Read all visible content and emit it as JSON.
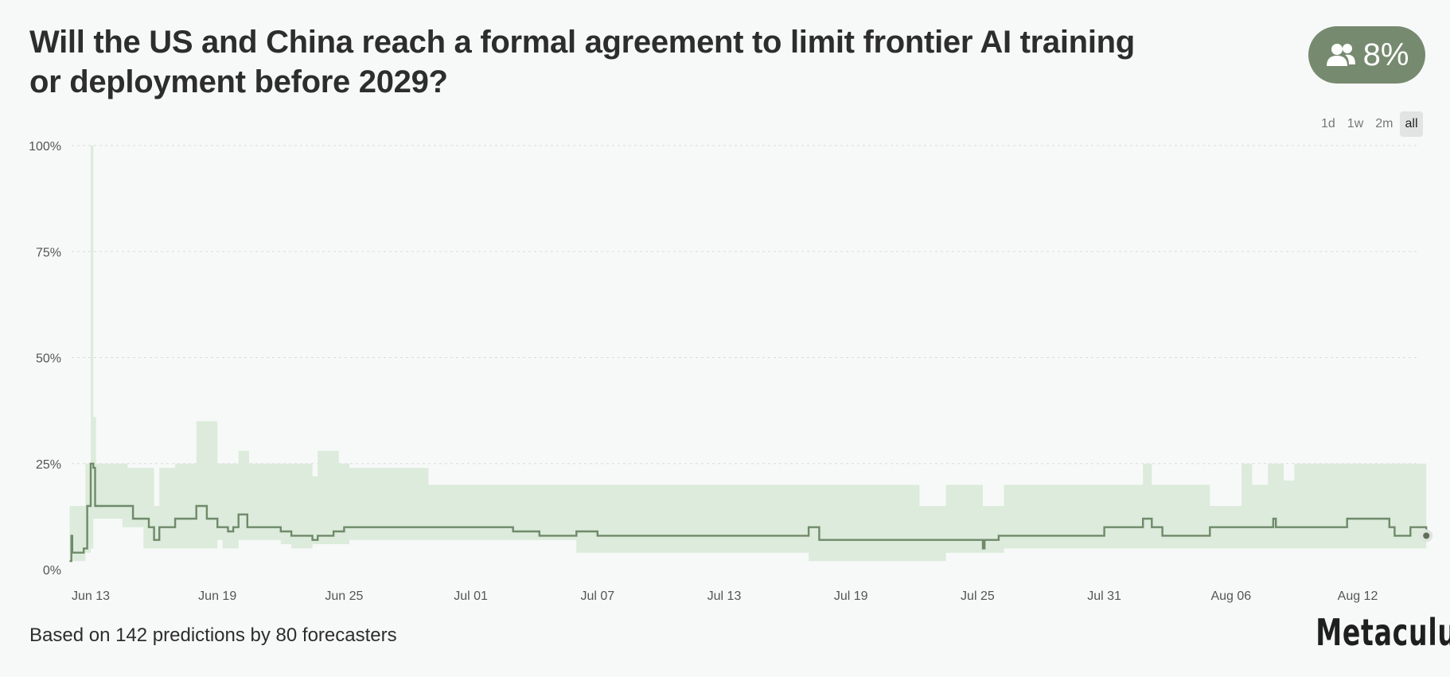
{
  "question": {
    "title": "Will the US and China reach a formal agreement to limit frontier AI training or deployment before 2029?"
  },
  "badge": {
    "icon": "people-icon",
    "value": "8%",
    "color": "#768a6f"
  },
  "range_buttons": [
    {
      "label": "1d",
      "active": false
    },
    {
      "label": "1w",
      "active": false
    },
    {
      "label": "2m",
      "active": false
    },
    {
      "label": "all",
      "active": true
    }
  ],
  "footer": {
    "text": "Based on 142 predictions by 80 forecasters"
  },
  "brand": {
    "name": "Metaculus"
  },
  "chart_data": {
    "type": "line",
    "title": "",
    "xlabel": "",
    "ylabel": "",
    "x_start": "2025-06-13",
    "x_end": "2025-08-15",
    "x_ticks": [
      "Jun 13",
      "Jun 19",
      "Jun 25",
      "Jul 01",
      "Jul 07",
      "Jul 13",
      "Jul 19",
      "Jul 25",
      "Jul 31",
      "Aug 06",
      "Aug 12"
    ],
    "x_tick_dates": [
      "2025-06-13",
      "2025-06-19",
      "2025-06-25",
      "2025-07-01",
      "2025-07-07",
      "2025-07-13",
      "2025-07-19",
      "2025-07-25",
      "2025-07-31",
      "2025-08-06",
      "2025-08-12"
    ],
    "y_ticks": [
      "0%",
      "25%",
      "50%",
      "75%",
      "100%"
    ],
    "y_tick_values": [
      0,
      25,
      50,
      75,
      100
    ],
    "ylim": [
      0,
      100
    ],
    "grid": true,
    "line_color": "#6f8a6a",
    "band_color": "#dcebdb",
    "series": [
      {
        "name": "",
        "points": [
          [
            "2025-06-12 00:00",
            2
          ],
          [
            "2025-06-12 02:00",
            8
          ],
          [
            "2025-06-12 03:00",
            4
          ],
          [
            "2025-06-12 16:00",
            5
          ],
          [
            "2025-06-12 20:00",
            15
          ],
          [
            "2025-06-13 00:00",
            25
          ],
          [
            "2025-06-13 03:00",
            24
          ],
          [
            "2025-06-13 05:00",
            15
          ],
          [
            "2025-06-15 00:00",
            12
          ],
          [
            "2025-06-15 18:00",
            10
          ],
          [
            "2025-06-16 00:00",
            7
          ],
          [
            "2025-06-16 06:00",
            10
          ],
          [
            "2025-06-17 00:00",
            12
          ],
          [
            "2025-06-18 00:00",
            15
          ],
          [
            "2025-06-18 12:00",
            12
          ],
          [
            "2025-06-19 00:00",
            10
          ],
          [
            "2025-06-19 12:00",
            9
          ],
          [
            "2025-06-19 18:00",
            10
          ],
          [
            "2025-06-20 00:00",
            13
          ],
          [
            "2025-06-20 10:00",
            10
          ],
          [
            "2025-06-22 00:00",
            9
          ],
          [
            "2025-06-22 12:00",
            8
          ],
          [
            "2025-06-23 12:00",
            7
          ],
          [
            "2025-06-23 18:00",
            8
          ],
          [
            "2025-06-24 12:00",
            9
          ],
          [
            "2025-06-25 00:00",
            10
          ],
          [
            "2025-07-03 00:00",
            9
          ],
          [
            "2025-07-04 06:00",
            8
          ],
          [
            "2025-07-06 00:00",
            9
          ],
          [
            "2025-07-07 00:00",
            8
          ],
          [
            "2025-07-17 00:00",
            10
          ],
          [
            "2025-07-17 12:00",
            7
          ],
          [
            "2025-07-25 06:00",
            5
          ],
          [
            "2025-07-25 08:00",
            7
          ],
          [
            "2025-07-26 00:00",
            8
          ],
          [
            "2025-07-31 00:00",
            10
          ],
          [
            "2025-08-01 20:00",
            12
          ],
          [
            "2025-08-02 06:00",
            10
          ],
          [
            "2025-08-02 18:00",
            8
          ],
          [
            "2025-08-05 00:00",
            10
          ],
          [
            "2025-08-08 00:00",
            12
          ],
          [
            "2025-08-08 03:00",
            10
          ],
          [
            "2025-08-11 12:00",
            12
          ],
          [
            "2025-08-13 12:00",
            10
          ],
          [
            "2025-08-13 18:00",
            8
          ],
          [
            "2025-08-14 12:00",
            10
          ],
          [
            "2025-08-15 06:00",
            8
          ]
        ],
        "last_value": 8
      }
    ],
    "band": [
      [
        "2025-06-12 00:00",
        15,
        2
      ],
      [
        "2025-06-12 18:00",
        25,
        4
      ],
      [
        "2025-06-13 00:00",
        100,
        5
      ],
      [
        "2025-06-13 03:00",
        36,
        12
      ],
      [
        "2025-06-13 06:00",
        25,
        12
      ],
      [
        "2025-06-14 12:00",
        25,
        10
      ],
      [
        "2025-06-14 18:00",
        24,
        10
      ],
      [
        "2025-06-15 12:00",
        24,
        5
      ],
      [
        "2025-06-16 00:00",
        15,
        5
      ],
      [
        "2025-06-16 06:00",
        24,
        5
      ],
      [
        "2025-06-17 00:00",
        25,
        5
      ],
      [
        "2025-06-18 00:00",
        35,
        5
      ],
      [
        "2025-06-19 00:00",
        25,
        7
      ],
      [
        "2025-06-19 06:00",
        25,
        5
      ],
      [
        "2025-06-20 00:00",
        28,
        7
      ],
      [
        "2025-06-20 12:00",
        25,
        7
      ],
      [
        "2025-06-22 00:00",
        25,
        6
      ],
      [
        "2025-06-22 12:00",
        25,
        5
      ],
      [
        "2025-06-23 12:00",
        22,
        6
      ],
      [
        "2025-06-23 18:00",
        28,
        6
      ],
      [
        "2025-06-24 18:00",
        25,
        6
      ],
      [
        "2025-06-25 06:00",
        24,
        7
      ],
      [
        "2025-06-29 00:00",
        20,
        7
      ],
      [
        "2025-07-06 00:00",
        20,
        4
      ],
      [
        "2025-07-10 00:00",
        20,
        4
      ],
      [
        "2025-07-17 00:00",
        20,
        2
      ],
      [
        "2025-07-21 12:00",
        20,
        2
      ],
      [
        "2025-07-22 06:00",
        15,
        2
      ],
      [
        "2025-07-23 12:00",
        20,
        4
      ],
      [
        "2025-07-25 06:00",
        15,
        4
      ],
      [
        "2025-07-26 06:00",
        20,
        5
      ],
      [
        "2025-08-01 20:00",
        25,
        5
      ],
      [
        "2025-08-02 06:00",
        20,
        5
      ],
      [
        "2025-08-05 00:00",
        15,
        5
      ],
      [
        "2025-08-06 12:00",
        25,
        5
      ],
      [
        "2025-08-07 00:00",
        20,
        5
      ],
      [
        "2025-08-07 18:00",
        25,
        5
      ],
      [
        "2025-08-08 12:00",
        21,
        5
      ],
      [
        "2025-08-09 00:00",
        25,
        5
      ],
      [
        "2025-08-15 06:00",
        25,
        5
      ]
    ]
  }
}
